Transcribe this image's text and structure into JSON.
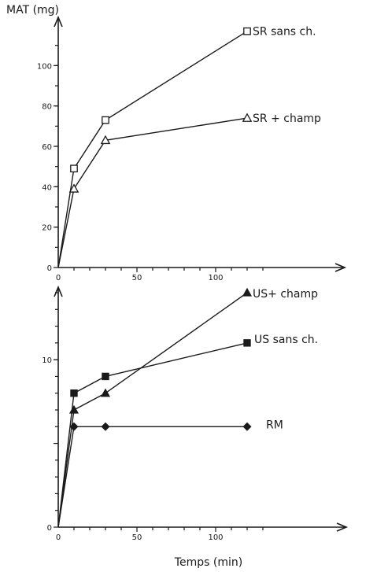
{
  "chart_data": [
    {
      "type": "line",
      "ylabel": "MAT (mg)",
      "xlabel": "",
      "xlim": [
        0,
        140
      ],
      "ylim": [
        0,
        120
      ],
      "x_ticks": [
        0,
        50,
        100
      ],
      "y_ticks": [
        0,
        20,
        40,
        60,
        80,
        100
      ],
      "series": [
        {
          "name": "SR sans ch.",
          "marker": "square-open",
          "x": [
            0,
            10,
            30,
            120
          ],
          "y": [
            0,
            49,
            73,
            117
          ]
        },
        {
          "name": "SR + champ",
          "marker": "triangle-open",
          "x": [
            0,
            10,
            30,
            120
          ],
          "y": [
            0,
            39,
            63,
            74
          ]
        }
      ]
    },
    {
      "type": "line",
      "xlabel": "Temps (min)",
      "ylabel": "",
      "xlim": [
        0,
        140
      ],
      "ylim": [
        0,
        14.5
      ],
      "x_ticks": [
        0,
        50,
        100
      ],
      "y_ticks": [
        0,
        10
      ],
      "series": [
        {
          "name": "US+ champ",
          "marker": "triangle-filled",
          "x": [
            0,
            10,
            30,
            120
          ],
          "y": [
            0,
            7,
            8,
            14
          ]
        },
        {
          "name": "US sans ch.",
          "marker": "square-filled",
          "x": [
            0,
            10,
            30,
            120
          ],
          "y": [
            0,
            8,
            9,
            11
          ]
        },
        {
          "name": "RM",
          "marker": "diamond-filled",
          "x": [
            0,
            10,
            30,
            120
          ],
          "y": [
            0,
            6,
            6,
            6
          ]
        }
      ]
    }
  ]
}
